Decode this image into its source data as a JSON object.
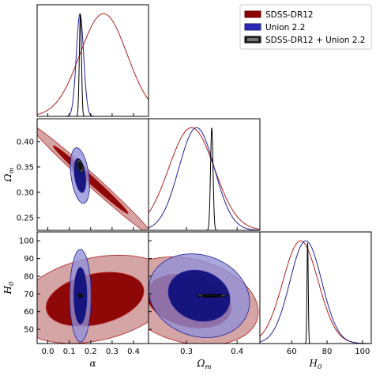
{
  "chart_data": {
    "type": "corner",
    "legend": {
      "placement": "top-right",
      "entries": [
        {
          "label": "SDSS-DR12",
          "fill": "#8b0000",
          "edge": "#6e0000"
        },
        {
          "label": "Union 2.2",
          "fill": "#2b2bb0",
          "edge": "#1a1a8a"
        },
        {
          "label": "SDSS-DR12 + Union 2.2",
          "fill": "#222222",
          "edge": "#000000"
        }
      ]
    },
    "parameters": [
      {
        "id": "alpha",
        "label": "α",
        "range": [
          -0.05,
          0.47
        ],
        "ticks": [
          0.0,
          0.1,
          0.2,
          0.3,
          0.4
        ],
        "tick_labels": [
          "0.0",
          "0.1",
          "0.2",
          "0.3",
          "0.4"
        ]
      },
      {
        "id": "omega_m",
        "label": "Ω",
        "label_sub": "m",
        "range": [
          0.225,
          0.445
        ],
        "ticks": [
          0.25,
          0.3,
          0.35,
          0.4
        ],
        "tick_labels": [
          "0.25",
          "0.30",
          "0.35",
          "0.40"
        ],
        "xticks": [
          0.3,
          0.4
        ],
        "xtick_labels": [
          "0.3",
          "0.4"
        ]
      },
      {
        "id": "H0",
        "label": "H",
        "label_sub": "0",
        "range": [
          42,
          105
        ],
        "ticks": [
          50,
          60,
          70,
          80,
          90,
          100
        ],
        "tick_labels": [
          "50",
          "60",
          "70",
          "80",
          "90",
          "100"
        ],
        "xticks": [
          60,
          80,
          100
        ],
        "xtick_labels": [
          "60",
          "80",
          "100"
        ]
      }
    ],
    "series": [
      {
        "name": "SDSS-DR12",
        "color": "#b22222",
        "fill_outer": "#c98b8b",
        "fill_inner": "#8b0000",
        "marginals": {
          "alpha": {
            "mean": 0.26,
            "sigma": 0.11
          },
          "omega_m": {
            "mean": 0.31,
            "sigma": 0.045
          },
          "H0": {
            "mean": 65,
            "sigma": 10
          }
        },
        "contours": [
          {
            "pair": [
              "alpha",
              "omega_m"
            ],
            "center": [
              0.2,
              0.325
            ],
            "sigma": [
              0.115,
              0.044
            ],
            "rho": -0.99
          },
          {
            "pair": [
              "alpha",
              "H0"
            ],
            "center": [
              0.22,
              67
            ],
            "sigma": [
              0.15,
              10
            ],
            "rho": 0.3
          },
          {
            "pair": [
              "omega_m",
              "H0"
            ],
            "center": [
              0.305,
              66
            ],
            "sigma": [
              0.055,
              10
            ],
            "rho": -0.25
          }
        ]
      },
      {
        "name": "Union 2.2",
        "color": "#22229a",
        "fill_outer": "#8f8fd6",
        "fill_inner": "#10107a",
        "marginals": {
          "alpha": {
            "mean": 0.15,
            "sigma": 0.017
          },
          "omega_m": {
            "mean": 0.32,
            "sigma": 0.035
          },
          "H0": {
            "mean": 68,
            "sigma": 9
          }
        },
        "contours": [
          {
            "pair": [
              "alpha",
              "omega_m"
            ],
            "center": [
              0.15,
              0.333
            ],
            "sigma": [
              0.018,
              0.022
            ],
            "rho": -0.35
          },
          {
            "pair": [
              "alpha",
              "H0"
            ],
            "center": [
              0.152,
              69
            ],
            "sigma": [
              0.02,
              10.5
            ],
            "rho": 0.0
          },
          {
            "pair": [
              "omega_m",
              "H0"
            ],
            "center": [
              0.325,
              69
            ],
            "sigma": [
              0.04,
              9.5
            ],
            "rho": -0.15
          }
        ]
      },
      {
        "name": "SDSS-DR12 + Union 2.2",
        "color": "#000000",
        "fill_outer": "#555555",
        "fill_inner": "#111111",
        "marginals": {
          "alpha": {
            "mean": 0.152,
            "sigma": 0.005
          },
          "omega_m": {
            "mean": 0.35,
            "sigma": 0.0025
          },
          "H0": {
            "mean": 69,
            "sigma": 0.35
          }
        },
        "contours": [
          {
            "pair": [
              "alpha",
              "omega_m"
            ],
            "center": [
              0.151,
              0.352
            ],
            "sigma": [
              0.006,
              0.005
            ],
            "rho": -0.5
          },
          {
            "pair": [
              "alpha",
              "H0"
            ],
            "center": [
              0.152,
              69
            ],
            "sigma": [
              0.005,
              0.35
            ],
            "rho": 0.0
          },
          {
            "pair": [
              "omega_m",
              "H0"
            ],
            "center": [
              0.35,
              69
            ],
            "sigma": [
              0.012,
              0.3
            ],
            "rho": 0.0
          }
        ]
      }
    ]
  }
}
